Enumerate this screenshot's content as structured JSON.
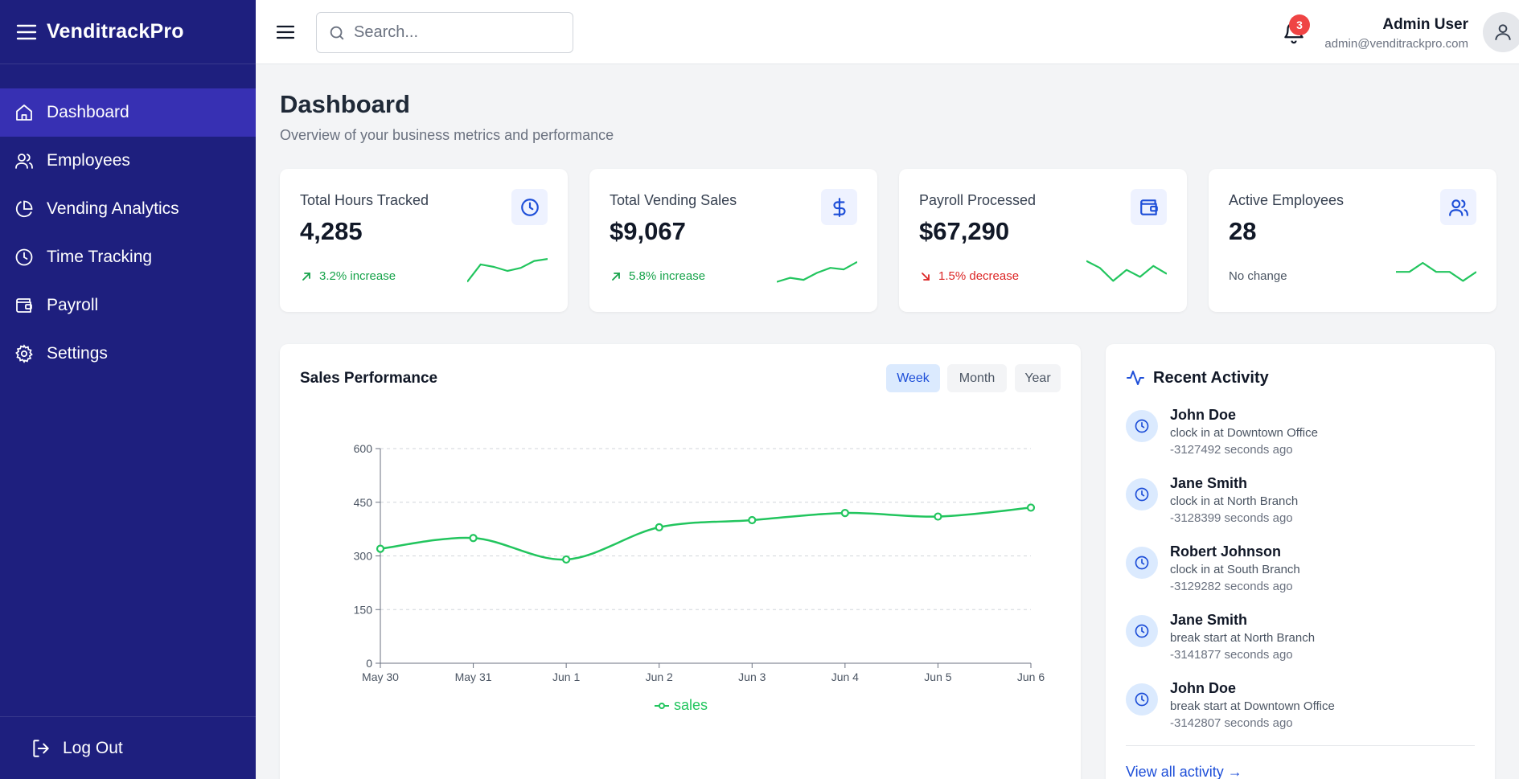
{
  "app": {
    "brand": "VenditrackPro"
  },
  "sidebar": {
    "items": [
      {
        "label": "Dashboard",
        "icon": "home-icon",
        "active": true
      },
      {
        "label": "Employees",
        "icon": "users-icon"
      },
      {
        "label": "Vending Analytics",
        "icon": "pie-chart-icon"
      },
      {
        "label": "Time Tracking",
        "icon": "clock-icon"
      },
      {
        "label": "Payroll",
        "icon": "wallet-icon"
      },
      {
        "label": "Settings",
        "icon": "gear-icon"
      }
    ],
    "logout_label": "Log Out"
  },
  "topbar": {
    "search_placeholder": "Search...",
    "notification_count": "3",
    "user_name": "Admin User",
    "user_email": "admin@venditrackpro.com"
  },
  "page": {
    "title": "Dashboard",
    "subtitle": "Overview of your business metrics and performance"
  },
  "stats": [
    {
      "label": "Total Hours Tracked",
      "value": "4,285",
      "trend": "3.2% increase",
      "direction": "up",
      "icon": "clock-icon",
      "spark": [
        20,
        55,
        50,
        42,
        48,
        62,
        66
      ]
    },
    {
      "label": "Total Vending Sales",
      "value": "$9,067",
      "trend": "5.8% increase",
      "direction": "up",
      "icon": "dollar-icon",
      "spark": [
        20,
        28,
        24,
        38,
        48,
        45,
        60
      ]
    },
    {
      "label": "Payroll Processed",
      "value": "$67,290",
      "trend": "1.5% decrease",
      "direction": "down",
      "icon": "wallet-icon",
      "spark": [
        62,
        48,
        22,
        44,
        30,
        52,
        36
      ]
    },
    {
      "label": "Active Employees",
      "value": "28",
      "trend": "No change",
      "direction": "flat",
      "icon": "users-icon",
      "spark": [
        40,
        40,
        58,
        40,
        40,
        22,
        40
      ]
    }
  ],
  "sales_panel": {
    "title": "Sales Performance",
    "ranges": [
      "Week",
      "Month",
      "Year"
    ],
    "active_range": "Week"
  },
  "chart_data": {
    "type": "line",
    "x": [
      "May 30",
      "May 31",
      "Jun 1",
      "Jun 2",
      "Jun 3",
      "Jun 4",
      "Jun 5",
      "Jun 6"
    ],
    "series": [
      {
        "name": "sales",
        "values": [
          320,
          350,
          290,
          380,
          400,
          420,
          410,
          435
        ],
        "color": "#22c55e"
      }
    ],
    "yticks": [
      0,
      150,
      300,
      450,
      600
    ],
    "ylim": [
      0,
      600
    ],
    "grid": true,
    "legend": "bottom"
  },
  "activity": {
    "title": "Recent Activity",
    "items": [
      {
        "name": "John Doe",
        "action": "clock in at Downtown Office",
        "time": "-3127492 seconds ago"
      },
      {
        "name": "Jane Smith",
        "action": "clock in at North Branch",
        "time": "-3128399 seconds ago"
      },
      {
        "name": "Robert Johnson",
        "action": "clock in at South Branch",
        "time": "-3129282 seconds ago"
      },
      {
        "name": "Jane Smith",
        "action": "break start at North Branch",
        "time": "-3141877 seconds ago"
      },
      {
        "name": "John Doe",
        "action": "break start at Downtown Office",
        "time": "-3142807 seconds ago"
      }
    ],
    "view_all_label": "View all activity →"
  },
  "colors": {
    "sidebar": "#1e1f7e",
    "active_nav": "#3730b3",
    "accent": "#1d4ed8",
    "up": "#16a34a",
    "down": "#dc2626"
  }
}
